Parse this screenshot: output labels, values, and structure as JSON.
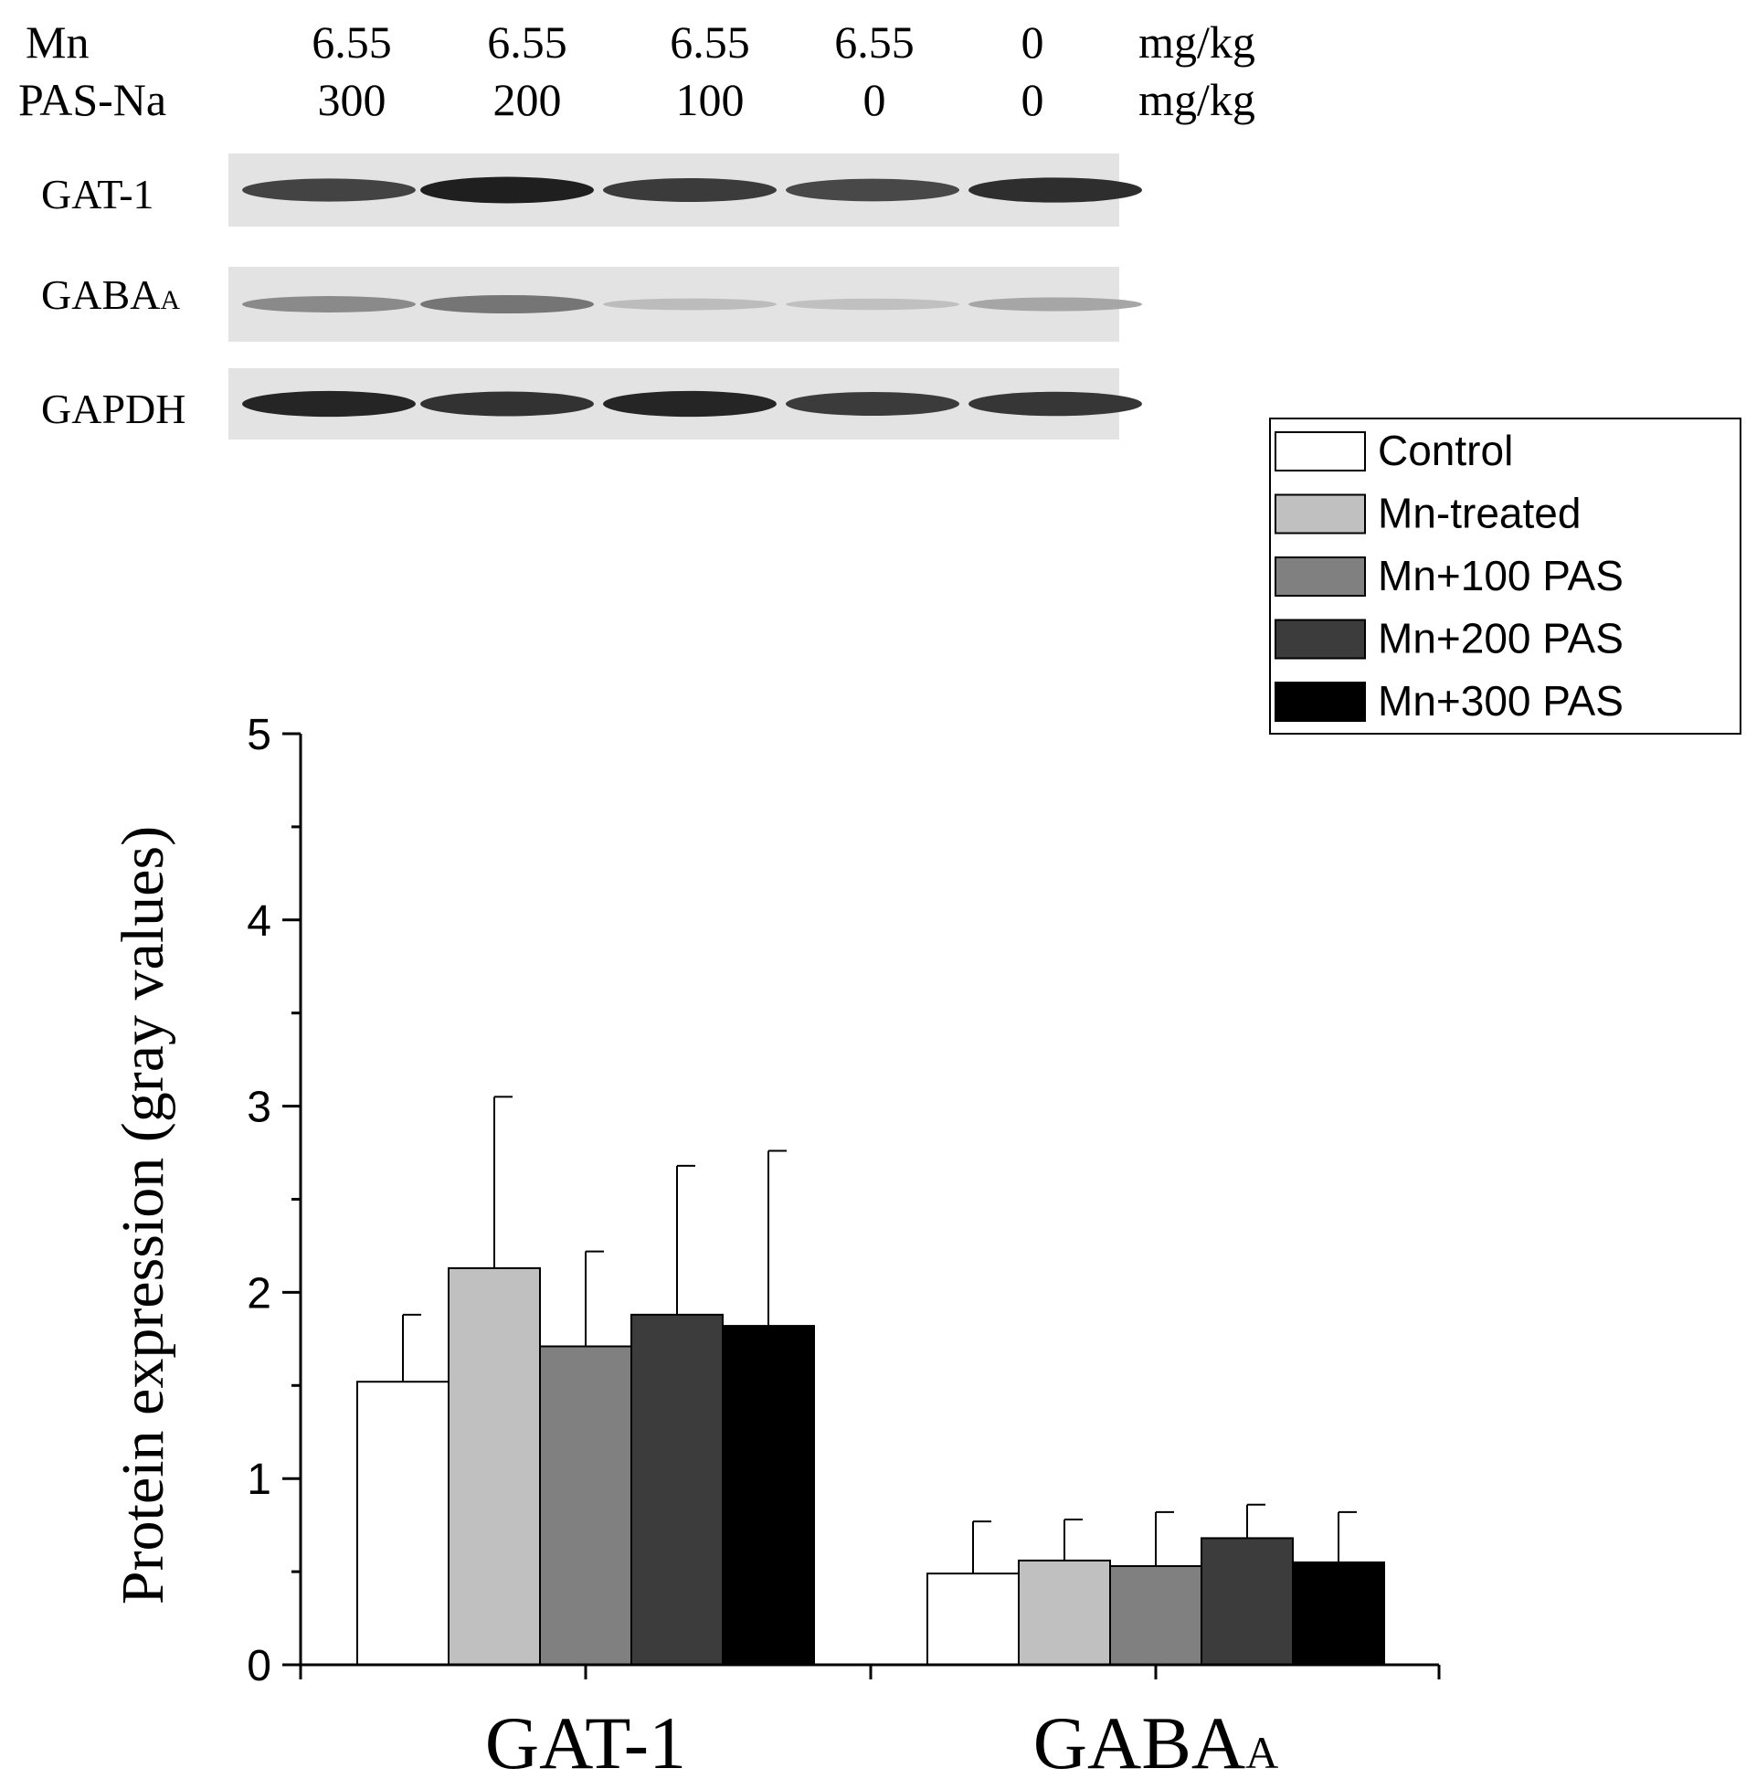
{
  "blot": {
    "header_rows": [
      {
        "label": "Mn",
        "values": [
          "6.55",
          "6.55",
          "6.55",
          "6.55",
          "0"
        ],
        "unit": "mg/kg"
      },
      {
        "label": "PAS-Na",
        "values": [
          "300",
          "200",
          "100",
          "0",
          "0"
        ],
        "unit": "mg/kg"
      }
    ],
    "bands": [
      {
        "main": "GAT-1",
        "sub": "",
        "intensity": [
          0.78,
          0.95,
          0.82,
          0.76,
          0.88
        ]
      },
      {
        "main": "GABA",
        "sub": "A",
        "intensity": [
          0.45,
          0.55,
          0.22,
          0.2,
          0.32
        ]
      },
      {
        "main": "GAPDH",
        "sub": "",
        "intensity": [
          0.92,
          0.86,
          0.92,
          0.82,
          0.84
        ]
      }
    ]
  },
  "chart_data": {
    "type": "bar",
    "categories": [
      {
        "main": "GAT-1",
        "sub": ""
      },
      {
        "main": "GABA",
        "sub": "A"
      }
    ],
    "ylabel": "Protein expression (gray values)",
    "ylim": [
      0,
      5
    ],
    "yticks": [
      "0",
      "1",
      "2",
      "3",
      "4",
      "5"
    ],
    "legend_position": "top-right",
    "series": [
      {
        "name": "Control",
        "color": "#ffffff",
        "values": [
          1.52,
          0.49
        ],
        "errors": [
          0.36,
          0.28
        ]
      },
      {
        "name": "Mn-treated",
        "color": "#c0c0c0",
        "values": [
          2.13,
          0.56
        ],
        "errors": [
          0.92,
          0.22
        ]
      },
      {
        "name": "Mn+100 PAS",
        "color": "#808080",
        "values": [
          1.71,
          0.53
        ],
        "errors": [
          0.51,
          0.29
        ]
      },
      {
        "name": "Mn+200 PAS",
        "color": "#3c3c3c",
        "values": [
          1.88,
          0.68
        ],
        "errors": [
          0.8,
          0.18
        ]
      },
      {
        "name": "Mn+300 PAS",
        "color": "#000000",
        "values": [
          1.82,
          0.55
        ],
        "errors": [
          0.94,
          0.27
        ]
      }
    ]
  }
}
